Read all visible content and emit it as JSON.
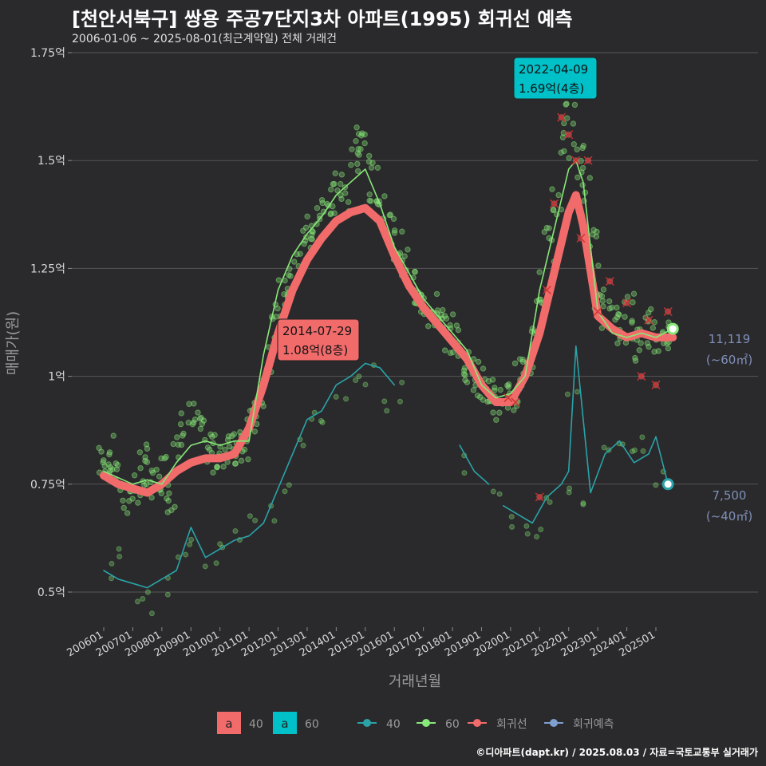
{
  "title": "[천안서북구] 쌍용 주공7단지3차 아파트(1995) 회귀선 예측",
  "subtitle": "2006-01-06 ~ 2025-08-01(최근계약일) 전체 거래건",
  "credit": "©디아파트(dapt.kr) / 2025.08.03 / 자료=국토교통부 실거래가",
  "colors": {
    "background": "#2a2a2c",
    "grid": "#555555",
    "s40": "#2aa3a8",
    "s60": "#88e878",
    "regression": "#f26b6b",
    "forecast": "#7f9fd0",
    "label_text": "#7f8fb8",
    "callout_60": "#00c0c8",
    "callout_40": "#f26b6b"
  },
  "chart_data": {
    "type": "line",
    "xlabel": "거래년월",
    "ylabel": "매매가(원)",
    "ylim": [
      0.42,
      1.75
    ],
    "xlim": [
      "2005-10",
      "2025-12"
    ],
    "ytick_labels": [
      "0.5억",
      "0.75억",
      "1억",
      "1.25억",
      "1.5억",
      "1.75억"
    ],
    "ytick_values": [
      0.5,
      0.75,
      1.0,
      1.25,
      1.5,
      1.75
    ],
    "xtick_labels": [
      "200601",
      "200701",
      "200801",
      "200901",
      "201001",
      "201101",
      "201201",
      "201301",
      "201401",
      "201501",
      "201601",
      "201701",
      "201801",
      "201901",
      "202001",
      "202101",
      "202201",
      "202301",
      "202401",
      "202501"
    ],
    "series": [
      {
        "name": "40",
        "type": "line",
        "x": [
          "2006-01",
          "2006-07",
          "2007-01",
          "2007-07",
          "2008-01",
          "2008-07",
          "2009-01",
          "2009-07",
          "2010-01",
          "2010-07",
          "2011-01",
          "2011-07",
          "2012-01",
          "2012-07",
          "2013-01",
          "2013-07",
          "2014-01",
          "2014-07",
          "2015-01",
          "2015-07",
          "2016-01",
          "null",
          "2018-04",
          "2018-10",
          "2019-04",
          "null",
          "2019-10",
          "2020-04",
          "2020-10",
          "2021-04",
          "2021-10",
          "2022-01",
          "2022-04",
          "2022-10",
          "2023-04",
          "2023-10",
          "2024-04",
          "2024-10",
          "2025-01",
          "2025-06"
        ],
        "values": [
          0.55,
          0.53,
          0.52,
          0.51,
          0.53,
          0.55,
          0.65,
          0.58,
          0.6,
          0.62,
          0.63,
          0.66,
          0.74,
          0.82,
          0.9,
          0.92,
          0.98,
          1.0,
          1.03,
          1.02,
          0.98,
          null,
          0.84,
          0.78,
          0.75,
          null,
          0.7,
          0.68,
          0.66,
          0.72,
          0.75,
          0.78,
          1.07,
          0.73,
          0.82,
          0.85,
          0.8,
          0.82,
          0.86,
          0.75
        ]
      },
      {
        "name": "60",
        "type": "line",
        "x": [
          "2006-01",
          "2007-01",
          "2007-07",
          "2008-01",
          "2008-07",
          "2009-01",
          "2009-07",
          "2010-01",
          "2010-07",
          "2011-01",
          "2011-07",
          "2012-01",
          "2012-07",
          "2013-01",
          "2013-07",
          "2014-01",
          "2014-07",
          "2015-01",
          "2015-07",
          "2016-01",
          "2016-07",
          "2017-01",
          "2017-07",
          "2018-01",
          "2018-07",
          "2019-01",
          "2019-07",
          "2020-01",
          "2020-07",
          "2021-01",
          "2021-07",
          "2022-01",
          "2022-04",
          "2022-07",
          "2023-01",
          "2023-07",
          "2024-01",
          "2024-07",
          "2025-01",
          "2025-08"
        ],
        "values": [
          0.78,
          0.75,
          0.76,
          0.75,
          0.8,
          0.84,
          0.85,
          0.84,
          0.85,
          0.85,
          1.05,
          1.2,
          1.28,
          1.33,
          1.37,
          1.42,
          1.45,
          1.48,
          1.4,
          1.3,
          1.24,
          1.18,
          1.14,
          1.1,
          1.06,
          0.98,
          0.95,
          0.96,
          1.0,
          1.2,
          1.34,
          1.48,
          1.5,
          1.45,
          1.15,
          1.1,
          1.09,
          1.1,
          1.09,
          1.11
        ]
      },
      {
        "name": "회귀선",
        "type": "line",
        "x": [
          "2006-01",
          "2006-07",
          "2007-01",
          "2007-07",
          "2008-01",
          "2008-07",
          "2009-01",
          "2009-07",
          "2010-01",
          "2010-07",
          "2011-01",
          "2011-07",
          "2012-01",
          "2012-07",
          "2013-01",
          "2013-07",
          "2014-01",
          "2014-07",
          "2015-01",
          "2015-07",
          "2016-01",
          "2016-07",
          "2017-01",
          "2017-07",
          "2018-01",
          "2018-07",
          "2019-01",
          "2019-07",
          "2020-01",
          "2020-07",
          "2021-01",
          "2021-07",
          "2022-01",
          "2022-04",
          "2022-07",
          "2023-01",
          "2023-07",
          "2024-01",
          "2024-07",
          "2025-01",
          "2025-08"
        ],
        "values": [
          0.77,
          0.75,
          0.74,
          0.73,
          0.75,
          0.78,
          0.8,
          0.81,
          0.81,
          0.82,
          0.88,
          0.98,
          1.1,
          1.2,
          1.27,
          1.32,
          1.36,
          1.38,
          1.39,
          1.36,
          1.28,
          1.21,
          1.16,
          1.12,
          1.08,
          1.04,
          0.98,
          0.94,
          0.94,
          1.0,
          1.1,
          1.24,
          1.38,
          1.42,
          1.35,
          1.14,
          1.11,
          1.09,
          1.1,
          1.09,
          1.09
        ]
      },
      {
        "name": "회귀예측",
        "type": "points",
        "x": [
          "2021-01",
          "2021-04",
          "2021-07",
          "2021-10",
          "2022-01",
          "2022-04",
          "2022-06",
          "2022-09",
          "2023-01",
          "2023-06",
          "2024-01",
          "2024-07",
          "2024-10",
          "2025-01",
          "2025-06",
          "2019-12",
          "2020-03"
        ],
        "values": [
          0.72,
          1.2,
          1.4,
          1.6,
          1.56,
          1.5,
          1.32,
          1.5,
          1.15,
          1.22,
          1.17,
          1.0,
          1.13,
          0.98,
          1.15,
          0.95,
          0.94
        ]
      }
    ],
    "scatter_60": {
      "x": [
        "2006-01",
        "2006-03",
        "2006-05",
        "2006-08",
        "2006-11",
        "2007-02",
        "2007-05",
        "2007-08",
        "2007-11",
        "2008-02",
        "2008-05",
        "2008-08",
        "2008-11",
        "2009-02",
        "2009-05",
        "2009-08",
        "2009-11",
        "2010-02",
        "2010-05",
        "2010-08",
        "2010-11",
        "2011-02",
        "2011-05",
        "2011-08",
        "2011-11",
        "2012-02",
        "2012-05",
        "2012-08",
        "2012-11",
        "2013-02",
        "2013-05",
        "2013-08",
        "2013-11",
        "2014-02",
        "2014-05",
        "2014-08",
        "2014-11",
        "2015-02",
        "2015-05",
        "2015-08",
        "2015-11",
        "2016-02",
        "2016-05",
        "2016-08",
        "2016-11",
        "2017-02",
        "2017-05",
        "2017-08",
        "2017-11",
        "2018-02",
        "2018-05",
        "2018-08",
        "2018-11",
        "2019-02",
        "2019-05",
        "2019-08",
        "2019-11",
        "2020-02",
        "2020-05",
        "2020-08",
        "2020-11",
        "2021-02",
        "2021-05",
        "2021-08",
        "2021-11",
        "2022-02",
        "2022-05",
        "2022-08",
        "2022-11",
        "2023-02",
        "2023-05",
        "2023-08",
        "2023-11",
        "2024-02",
        "2024-05",
        "2024-08",
        "2024-11",
        "2025-02",
        "2025-05"
      ],
      "values": [
        0.8,
        0.82,
        0.78,
        0.76,
        0.72,
        0.74,
        0.8,
        0.76,
        0.75,
        0.78,
        0.73,
        0.82,
        0.88,
        0.9,
        0.86,
        0.84,
        0.82,
        0.8,
        0.86,
        0.84,
        0.85,
        0.88,
        0.92,
        1.0,
        1.1,
        1.18,
        1.22,
        1.25,
        1.3,
        1.33,
        1.35,
        1.38,
        1.4,
        1.45,
        1.42,
        1.5,
        1.55,
        1.52,
        1.45,
        1.4,
        1.35,
        1.3,
        1.25,
        1.22,
        1.2,
        1.18,
        1.15,
        1.12,
        1.1,
        1.08,
        1.05,
        1.02,
        1.0,
        0.98,
        0.95,
        0.93,
        0.96,
        0.95,
        1.0,
        1.05,
        1.1,
        1.2,
        1.3,
        1.4,
        1.55,
        1.62,
        1.5,
        1.45,
        1.3,
        1.15,
        1.2,
        1.1,
        1.12,
        1.15,
        1.08,
        1.1,
        1.12,
        1.08,
        1.1
      ]
    },
    "scatter_40": {
      "x": [
        "2006-02",
        "2006-08",
        "2007-03",
        "2007-09",
        "2008-03",
        "2008-09",
        "2009-03",
        "2009-09",
        "2010-03",
        "2010-09",
        "2011-03",
        "2011-09",
        "2012-03",
        "2012-09",
        "2013-03",
        "2013-09",
        "2014-03",
        "2014-09",
        "2015-03",
        "2015-09",
        "2016-03",
        "2018-06",
        "2019-06",
        "2019-12",
        "2020-06",
        "2020-12",
        "2021-06",
        "2021-12",
        "2022-03",
        "2022-09",
        "2023-03",
        "2023-09",
        "2024-03",
        "2024-09",
        "2025-03"
      ],
      "values": [
        0.55,
        0.58,
        0.5,
        0.48,
        0.52,
        0.6,
        0.62,
        0.58,
        0.63,
        0.62,
        0.65,
        0.68,
        0.75,
        0.85,
        0.9,
        0.92,
        0.97,
        0.99,
        1.0,
        0.95,
        0.96,
        0.8,
        0.72,
        0.68,
        0.65,
        0.62,
        0.7,
        0.76,
        0.95,
        0.72,
        0.82,
        0.84,
        0.8,
        0.85,
        0.76
      ]
    },
    "callouts": [
      {
        "line1": "2022-04-09",
        "line2": "1.69억(4층)",
        "series": "60"
      },
      {
        "line1": "2014-07-29",
        "line2": "1.08억(8층)",
        "series": "40"
      }
    ],
    "end_labels": [
      {
        "series": "60",
        "line1": "11,119",
        "line2": "(~60㎡)"
      },
      {
        "series": "40",
        "line1": "7,500",
        "line2": "(~40㎡)"
      }
    ],
    "legend": {
      "position": "bottom",
      "fill_items": [
        {
          "key": "a",
          "label": "40"
        },
        {
          "key": "a",
          "label": "60"
        }
      ],
      "line_items": [
        {
          "label": "40"
        },
        {
          "label": "60"
        },
        {
          "label": "회귀선"
        },
        {
          "label": "회귀예측"
        }
      ]
    }
  }
}
